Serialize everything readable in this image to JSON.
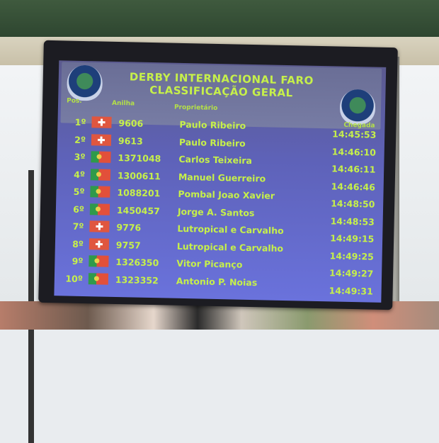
{
  "board": {
    "title_line1": "DERBY INTERNACIONAL FARO",
    "title_line2": "CLASSIFICAÇÃO GERAL",
    "col_pos": "Pos.",
    "col_ring": "Anilha",
    "col_owner": "Proprietário",
    "col_arrival": "Chegada",
    "rows": [
      {
        "pos": "1º",
        "flag": "switzerland",
        "ring": "9606",
        "owner": "Paulo Ribeiro",
        "arrival": "14:45:53"
      },
      {
        "pos": "2º",
        "flag": "switzerland",
        "ring": "9613",
        "owner": "Paulo Ribeiro",
        "arrival": "14:46:10"
      },
      {
        "pos": "3º",
        "flag": "portugal",
        "ring": "1371048",
        "owner": "Carlos Teixeira",
        "arrival": "14:46:11"
      },
      {
        "pos": "4º",
        "flag": "portugal",
        "ring": "1300611",
        "owner": "Manuel Guerreiro",
        "arrival": "14:46:46"
      },
      {
        "pos": "5º",
        "flag": "portugal",
        "ring": "1088201",
        "owner": "Pombal Joao Xavier",
        "arrival": "14:48:50"
      },
      {
        "pos": "6º",
        "flag": "portugal",
        "ring": "1450457",
        "owner": "Jorge A. Santos",
        "arrival": "14:48:53"
      },
      {
        "pos": "7º",
        "flag": "switzerland",
        "ring": "9776",
        "owner": "Lutropical e Carvalho",
        "arrival": "14:49:15"
      },
      {
        "pos": "8º",
        "flag": "switzerland",
        "ring": "9757",
        "owner": "Lutropical e Carvalho",
        "arrival": "14:49:25"
      },
      {
        "pos": "9º",
        "flag": "portugal",
        "ring": "1326350",
        "owner": "Vitor Picanço",
        "arrival": "14:49:27"
      },
      {
        "pos": "10º",
        "flag": "portugal",
        "ring": "1323352",
        "owner": "Antonio P. Noias",
        "arrival": "14:49:31"
      }
    ]
  },
  "colors": {
    "text": "#c6f04a",
    "screen": "#6a72dc"
  }
}
